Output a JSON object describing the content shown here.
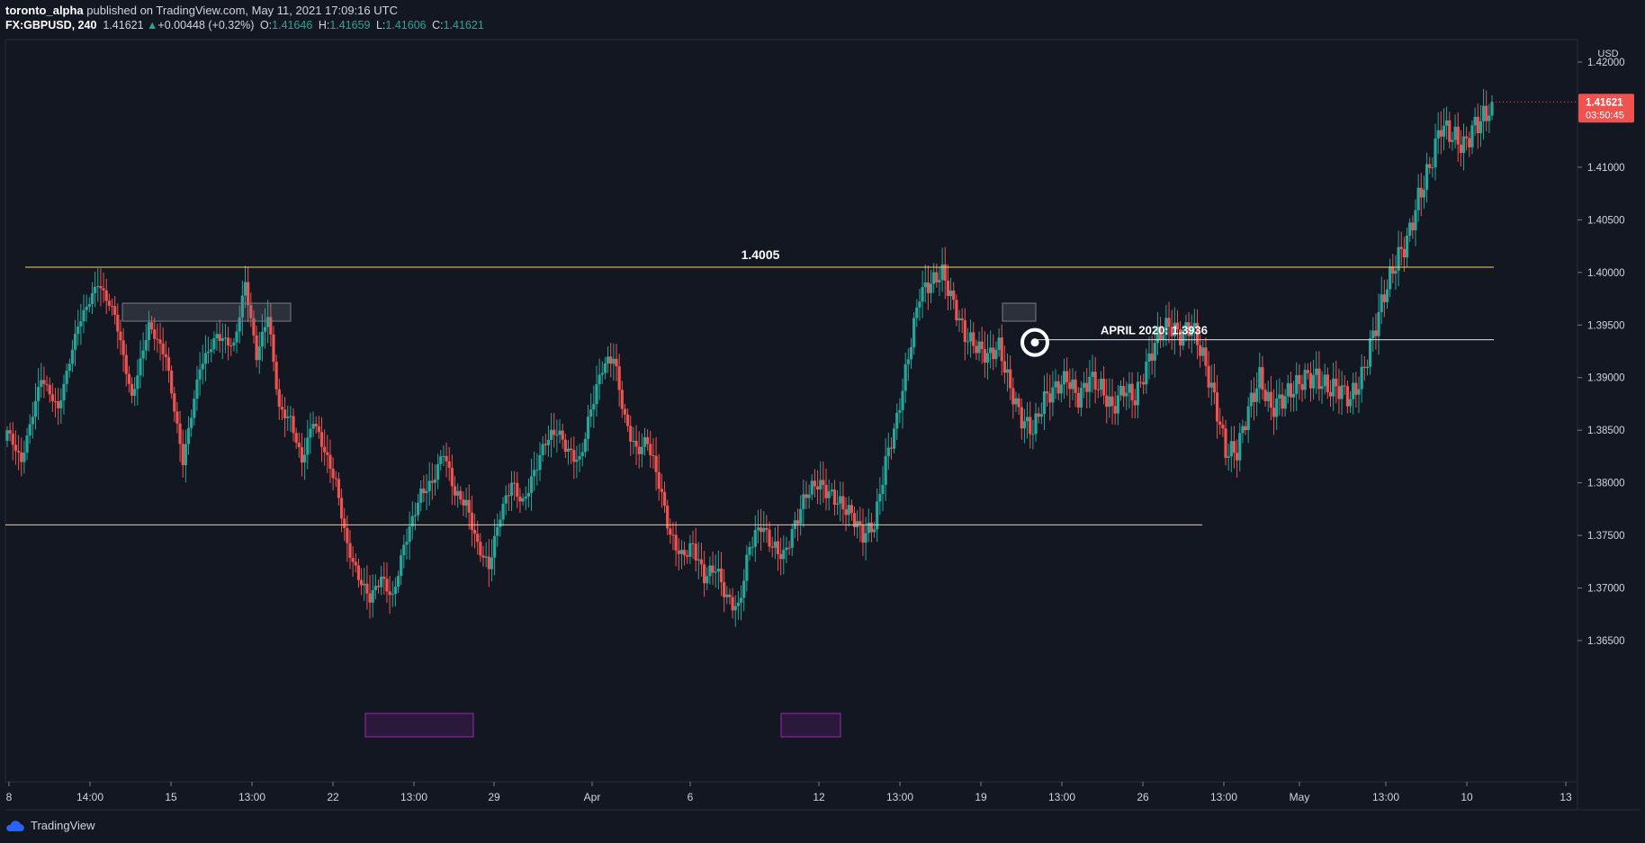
{
  "header": {
    "author": "toronto_alpha",
    "published": "published on TradingView.com, May 11, 2021 17:09:16 UTC",
    "symbol": "FX:GBPUSD, 240",
    "last": "1.41621",
    "change_arrow": "▲",
    "change": "+0.00448 (+0.32%)",
    "o_label": "O:",
    "o_value": "1.41646",
    "h_label": "H:",
    "h_value": "1.41659",
    "l_label": "L:",
    "l_value": "1.41606",
    "c_label": "C:",
    "c_value": "1.41621"
  },
  "footer": {
    "brand": "TradingView"
  },
  "colors": {
    "background": "#131722",
    "up": "#26a69a",
    "down": "#ef5350",
    "level": "#f0d468",
    "white_line": "#e0e3eb",
    "zone_purple": "#9c27b0",
    "price_tag": "#ef5350"
  },
  "chart_data": {
    "type": "candlestick",
    "currency": "USD",
    "ylim": [
      1.3625,
      1.4225
    ],
    "y_ticks": [
      "1.42000",
      "1.41000",
      "1.40500",
      "1.40000",
      "1.39500",
      "1.39000",
      "1.38500",
      "1.38000",
      "1.37500",
      "1.37000",
      "1.36500"
    ],
    "x_ticks": [
      "8",
      "14:00",
      "15",
      "13:00",
      "22",
      "13:00",
      "29",
      "Apr",
      "6",
      "12",
      "13:00",
      "19",
      "13:00",
      "26",
      "13:00",
      "May",
      "13:00",
      "10",
      "13"
    ],
    "last_price": {
      "value": "1.41621",
      "countdown": "03:50:45"
    },
    "annotations": {
      "resistance": {
        "label": "1.4005",
        "price": 1.4005
      },
      "support": {
        "price": 1.376
      },
      "april_level": {
        "label": "APRIL 2020: 1.3936",
        "price": 1.3936
      }
    },
    "path": [
      [
        0,
        1.385
      ],
      [
        5,
        1.382
      ],
      [
        12,
        1.39
      ],
      [
        18,
        1.387
      ],
      [
        25,
        1.395
      ],
      [
        32,
        1.399
      ],
      [
        38,
        1.396
      ],
      [
        44,
        1.388
      ],
      [
        50,
        1.395
      ],
      [
        56,
        1.392
      ],
      [
        62,
        1.382
      ],
      [
        68,
        1.391
      ],
      [
        74,
        1.394
      ],
      [
        80,
        1.393
      ],
      [
        84,
        1.399
      ],
      [
        88,
        1.392
      ],
      [
        92,
        1.396
      ],
      [
        96,
        1.387
      ],
      [
        100,
        1.386
      ],
      [
        104,
        1.382
      ],
      [
        108,
        1.386
      ],
      [
        112,
        1.383
      ],
      [
        116,
        1.38
      ],
      [
        120,
        1.374
      ],
      [
        124,
        1.371
      ],
      [
        128,
        1.369
      ],
      [
        132,
        1.371
      ],
      [
        136,
        1.369
      ],
      [
        140,
        1.374
      ],
      [
        146,
        1.379
      ],
      [
        150,
        1.38
      ],
      [
        154,
        1.383
      ],
      [
        158,
        1.379
      ],
      [
        162,
        1.378
      ],
      [
        166,
        1.374
      ],
      [
        170,
        1.372
      ],
      [
        174,
        1.377
      ],
      [
        178,
        1.38
      ],
      [
        182,
        1.378
      ],
      [
        186,
        1.381
      ],
      [
        190,
        1.384
      ],
      [
        194,
        1.385
      ],
      [
        198,
        1.383
      ],
      [
        202,
        1.382
      ],
      [
        206,
        1.387
      ],
      [
        210,
        1.391
      ],
      [
        214,
        1.392
      ],
      [
        218,
        1.386
      ],
      [
        222,
        1.383
      ],
      [
        226,
        1.384
      ],
      [
        230,
        1.38
      ],
      [
        234,
        1.375
      ],
      [
        238,
        1.373
      ],
      [
        242,
        1.374
      ],
      [
        246,
        1.371
      ],
      [
        250,
        1.372
      ],
      [
        254,
        1.369
      ],
      [
        258,
        1.368
      ],
      [
        262,
        1.374
      ],
      [
        266,
        1.376
      ],
      [
        270,
        1.374
      ],
      [
        274,
        1.373
      ],
      [
        278,
        1.376
      ],
      [
        282,
        1.379
      ],
      [
        286,
        1.38
      ],
      [
        290,
        1.379
      ],
      [
        294,
        1.378
      ],
      [
        298,
        1.377
      ],
      [
        302,
        1.375
      ],
      [
        306,
        1.376
      ],
      [
        310,
        1.382
      ],
      [
        314,
        1.386
      ],
      [
        318,
        1.392
      ],
      [
        322,
        1.398
      ],
      [
        326,
        1.399
      ],
      [
        330,
        1.4
      ],
      [
        334,
        1.397
      ],
      [
        338,
        1.394
      ],
      [
        342,
        1.393
      ],
      [
        346,
        1.392
      ],
      [
        350,
        1.393
      ],
      [
        354,
        1.389
      ],
      [
        358,
        1.386
      ],
      [
        362,
        1.385
      ],
      [
        366,
        1.388
      ],
      [
        370,
        1.389
      ],
      [
        374,
        1.39
      ],
      [
        378,
        1.388
      ],
      [
        382,
        1.39
      ],
      [
        386,
        1.389
      ],
      [
        390,
        1.387
      ],
      [
        394,
        1.389
      ],
      [
        398,
        1.388
      ],
      [
        402,
        1.391
      ],
      [
        406,
        1.394
      ],
      [
        410,
        1.395
      ],
      [
        414,
        1.394
      ],
      [
        418,
        1.395
      ],
      [
        422,
        1.392
      ],
      [
        426,
        1.388
      ],
      [
        430,
        1.383
      ],
      [
        434,
        1.383
      ],
      [
        438,
        1.387
      ],
      [
        442,
        1.39
      ],
      [
        446,
        1.387
      ],
      [
        450,
        1.388
      ],
      [
        454,
        1.389
      ],
      [
        458,
        1.39
      ],
      [
        462,
        1.39
      ],
      [
        466,
        1.389
      ],
      [
        470,
        1.389
      ],
      [
        474,
        1.388
      ],
      [
        478,
        1.39
      ],
      [
        482,
        1.394
      ],
      [
        486,
        1.398
      ],
      [
        490,
        1.401
      ],
      [
        494,
        1.403
      ],
      [
        498,
        1.407
      ],
      [
        502,
        1.41
      ],
      [
        506,
        1.414
      ],
      [
        510,
        1.413
      ],
      [
        514,
        1.412
      ],
      [
        518,
        1.414
      ],
      [
        522,
        1.415
      ],
      [
        524,
        1.41621
      ]
    ]
  }
}
